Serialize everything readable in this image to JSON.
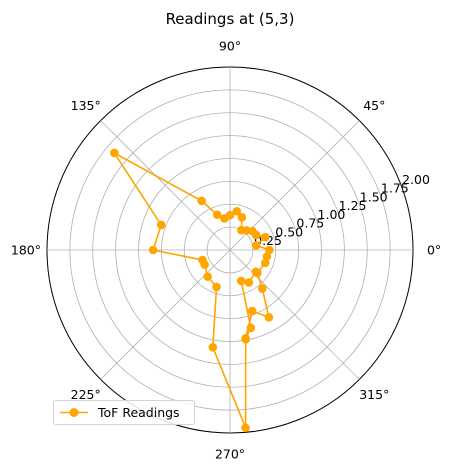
{
  "chart_data": {
    "type": "line",
    "projection": "polar",
    "title": "Readings at (5,3)",
    "theta_tick_labels": [
      "0°",
      "45°",
      "90°",
      "135°",
      "180°",
      "225°",
      "270°",
      "315°"
    ],
    "r_tick_labels": [
      "0.25",
      "0.50",
      "0.75",
      "1.00",
      "1.25",
      "1.50",
      "1.75",
      "2.00"
    ],
    "r_ticks": [
      0.25,
      0.5,
      0.75,
      1.0,
      1.25,
      1.5,
      1.75,
      2.0
    ],
    "rlim": [
      0,
      2.0
    ],
    "grid": true,
    "legend_position": "lower-left",
    "color": "#ffa500",
    "series": [
      {
        "name": "ToF Readings",
        "marker": "circle",
        "points": [
          {
            "theta_deg": -80,
            "r": 0.98
          },
          {
            "theta_deg": -70,
            "r": 0.71
          },
          {
            "theta_deg": -60,
            "r": 0.85
          },
          {
            "theta_deg": -50,
            "r": 0.55
          },
          {
            "theta_deg": -40,
            "r": 0.39
          },
          {
            "theta_deg": -20,
            "r": 0.41
          },
          {
            "theta_deg": -10,
            "r": 0.41
          },
          {
            "theta_deg": 0,
            "r": 0.43
          },
          {
            "theta_deg": 10,
            "r": 0.29
          },
          {
            "theta_deg": 20,
            "r": 0.41
          },
          {
            "theta_deg": 30,
            "r": 0.33
          },
          {
            "theta_deg": 40,
            "r": 0.32
          },
          {
            "theta_deg": 50,
            "r": 0.28
          },
          {
            "theta_deg": 60,
            "r": 0.25
          },
          {
            "theta_deg": 70,
            "r": 0.38
          },
          {
            "theta_deg": 80,
            "r": 0.43
          },
          {
            "theta_deg": 90,
            "r": 0.38
          },
          {
            "theta_deg": 100,
            "r": 0.35
          },
          {
            "theta_deg": 110,
            "r": 0.41
          },
          {
            "theta_deg": 120,
            "r": 0.62
          },
          {
            "theta_deg": 140,
            "r": 1.65
          },
          {
            "theta_deg": 160,
            "r": 0.8
          },
          {
            "theta_deg": 180,
            "r": 0.84
          },
          {
            "theta_deg": 200,
            "r": 0.32
          },
          {
            "theta_deg": 210,
            "r": 0.32
          },
          {
            "theta_deg": 230,
            "r": 0.38
          },
          {
            "theta_deg": 250,
            "r": 0.43
          },
          {
            "theta_deg": 260,
            "r": 1.08
          },
          {
            "theta_deg": 275,
            "r": 1.95
          },
          {
            "theta_deg": 280,
            "r": 0.99
          },
          {
            "theta_deg": 285,
            "r": 0.88
          },
          {
            "theta_deg": 290,
            "r": 0.36
          },
          {
            "theta_deg": 300,
            "r": 0.41
          },
          {
            "theta_deg": 320,
            "r": 0.37
          }
        ]
      }
    ]
  }
}
